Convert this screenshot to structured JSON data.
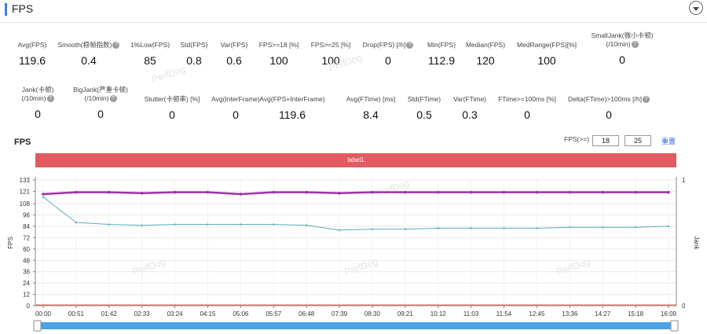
{
  "section": {
    "title": "FPS"
  },
  "metrics_row1": [
    {
      "label": "Avg(FPS)",
      "value": "119.6",
      "help": false
    },
    {
      "label": "Smooth(稳帧指数)",
      "value": "0.4",
      "help": true
    },
    {
      "label": "1%Low(FPS)",
      "value": "85",
      "help": false
    },
    {
      "label": "Std(FPS)",
      "value": "0.8",
      "help": false
    },
    {
      "label": "Var(FPS)",
      "value": "0.6",
      "help": false
    },
    {
      "label": "FPS>=18 [%]",
      "value": "100",
      "help": false
    },
    {
      "label": "FPS>=25 [%]",
      "value": "100",
      "help": false
    },
    {
      "label": "Drop(FPS) [/h]",
      "value": "0",
      "help": true
    },
    {
      "label": "Min(FPS)",
      "value": "112.9",
      "help": false
    },
    {
      "label": "Median(FPS)",
      "value": "120",
      "help": false
    },
    {
      "label": "MedRange(FPS)[%]",
      "value": "100",
      "help": false
    },
    {
      "label": "SmallJank(微小卡顿)",
      "label2": "(/10min)",
      "value": "0",
      "help": true
    }
  ],
  "metrics_row2": [
    {
      "label": "Jank(卡顿)",
      "label2": "(/10min)",
      "value": "0",
      "help": true
    },
    {
      "label": "BigJank(严重卡顿)",
      "label2": "(/10min)",
      "value": "0",
      "help": true
    },
    {
      "label": "Stutter(卡顿率) [%]",
      "value": "0",
      "help": false
    },
    {
      "label": "Avg(InterFrame)",
      "value": "0",
      "help": false
    },
    {
      "label": "Avg(FPS+InterFrame)",
      "value": "119.6",
      "help": false
    },
    {
      "label": "Avg(FTime) [ms]",
      "value": "8.4",
      "help": false
    },
    {
      "label": "Std(FTime)",
      "value": "0.5",
      "help": false
    },
    {
      "label": "Var(FTime)",
      "value": "0.3",
      "help": false
    },
    {
      "label": "FTime>=100ms [%]",
      "value": "0",
      "help": false
    },
    {
      "label": "Delta(FTime)>100ms [/h]",
      "value": "0",
      "help": true
    }
  ],
  "help_glyph": "?",
  "chart_header": {
    "title": "FPS",
    "filter_label": "FPS(>=)",
    "threshold_1": "18",
    "threshold_2": "25",
    "reset_label": "重置",
    "band_label": "label1"
  },
  "watermark": "PerfDog",
  "colors": {
    "fps": "#a030a8",
    "jank": "#5aaeb4",
    "band": "#e05c60",
    "accent": "#3d7be0",
    "slider": "#4aa3e8"
  },
  "chart_data": {
    "type": "line",
    "ylabel": "FPS",
    "y2label": "Jank",
    "y_ticks": [
      "0",
      "12",
      "24",
      "36",
      "48",
      "60",
      "72",
      "84",
      "96",
      "108",
      "121",
      "133"
    ],
    "y2_ticks": [
      "0",
      "1"
    ],
    "ylim": [
      0,
      133
    ],
    "y2lim": [
      0,
      1
    ],
    "x_ticks": [
      "00:00",
      "00:51",
      "01:42",
      "02:33",
      "03:24",
      "04:15",
      "05:06",
      "05:57",
      "06:48",
      "07:39",
      "08:30",
      "09:21",
      "10:12",
      "11:03",
      "11:54",
      "12:45",
      "13:36",
      "14:27",
      "15:18",
      "16:09"
    ],
    "x_range_seconds": [
      0,
      1032
    ],
    "series": [
      {
        "values": [
          118,
          120,
          120,
          119,
          120,
          120,
          118,
          120,
          120,
          119,
          120,
          120,
          120,
          120,
          120,
          120,
          120,
          120,
          120,
          120
        ]
      },
      {
        "values": [
          115,
          88,
          86,
          85,
          86,
          86,
          86,
          86,
          85,
          80,
          81,
          81,
          82,
          82,
          82,
          82,
          83,
          83,
          83,
          84
        ]
      }
    ]
  }
}
